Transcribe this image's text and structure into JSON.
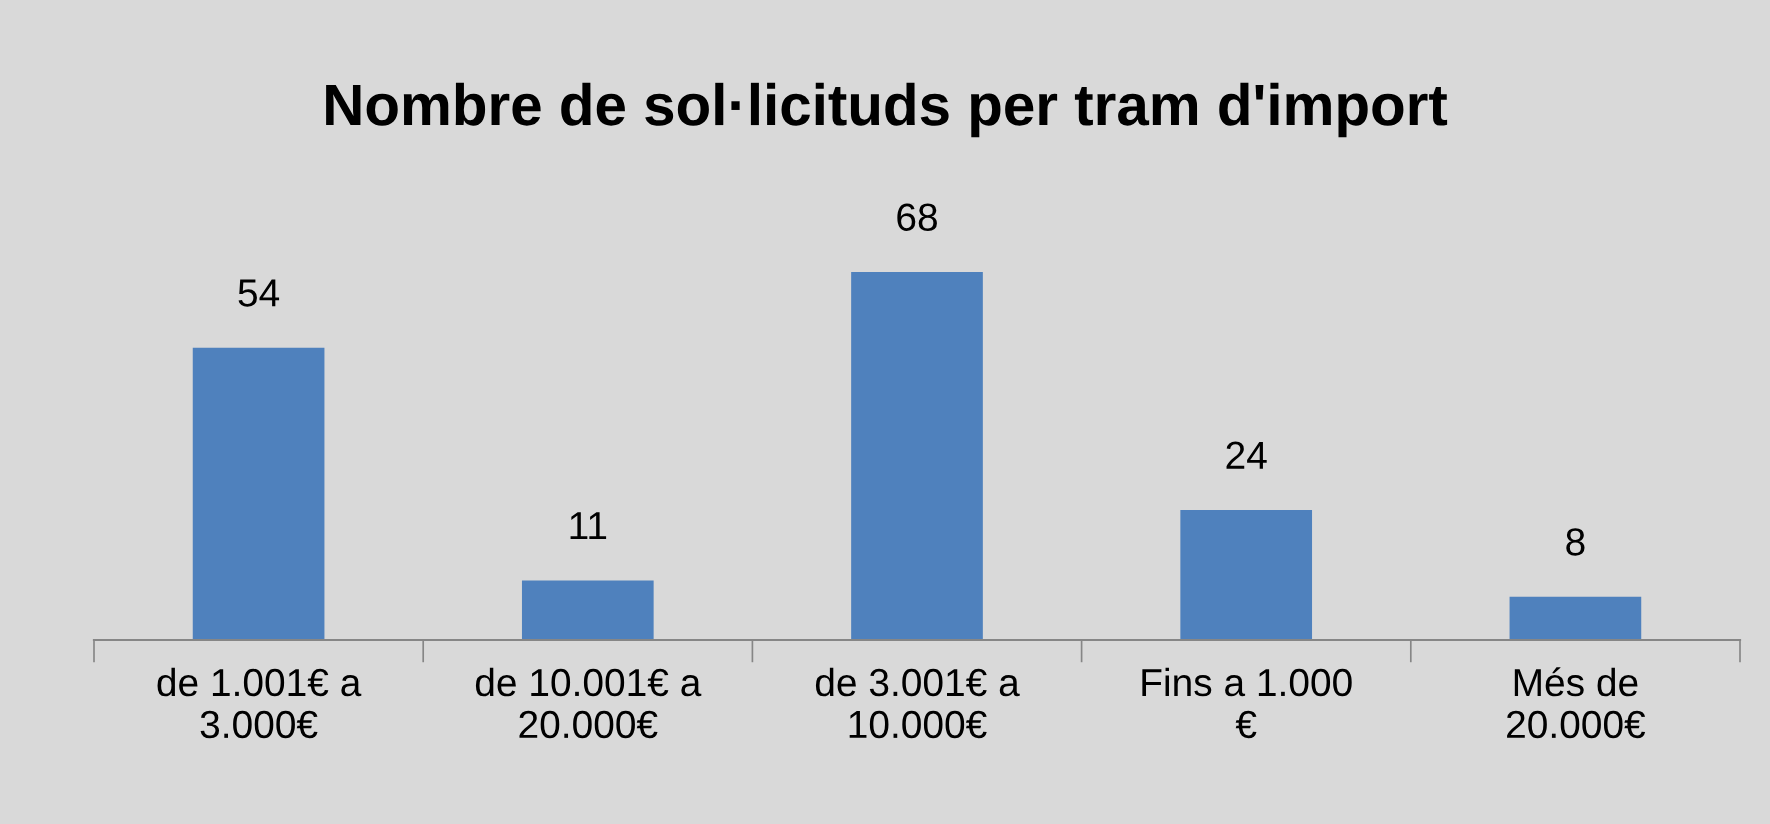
{
  "chart_data": {
    "type": "bar",
    "title": "Nombre de sol·licituds per tram d'import",
    "categories": [
      "de 1.001€ a 3.000€",
      "de 10.001€ a 20.000€",
      "de 3.001€ a 10.000€",
      "Fins a 1.000 €",
      "Més de 20.000€"
    ],
    "values": [
      54,
      11,
      68,
      24,
      8
    ],
    "color": "#4f81bd",
    "data_labels": true,
    "grid": false,
    "legend": false
  }
}
